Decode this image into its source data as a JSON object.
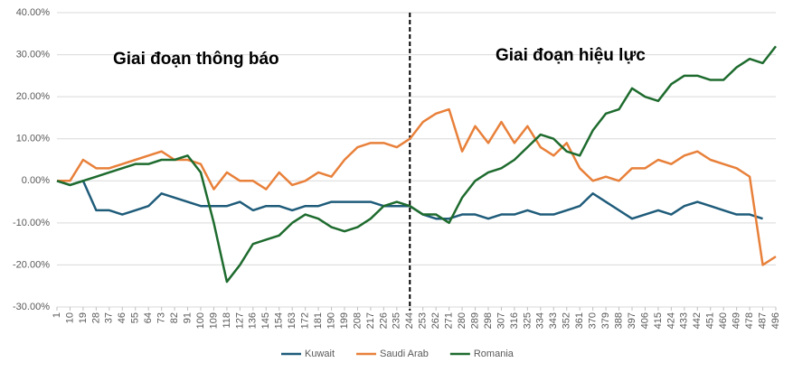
{
  "chart_data": {
    "type": "line",
    "annotations": [
      "Giai đoạn thông báo",
      "Giai đoạn hiệu lực"
    ],
    "divider_x": 244,
    "x": [
      1,
      10,
      19,
      28,
      37,
      46,
      55,
      64,
      73,
      82,
      91,
      100,
      109,
      118,
      127,
      136,
      145,
      154,
      163,
      172,
      181,
      190,
      199,
      208,
      217,
      226,
      235,
      244,
      253,
      262,
      271,
      280,
      289,
      298,
      307,
      316,
      325,
      334,
      343,
      352,
      361,
      370,
      379,
      388,
      397,
      406,
      415,
      424,
      433,
      442,
      451,
      460,
      469,
      478,
      487,
      496
    ],
    "xlim": [
      1,
      496
    ],
    "xticks": [
      1,
      10,
      19,
      28,
      37,
      46,
      55,
      64,
      73,
      82,
      91,
      100,
      109,
      118,
      127,
      136,
      145,
      154,
      163,
      172,
      181,
      190,
      199,
      208,
      217,
      226,
      235,
      244,
      253,
      262,
      271,
      280,
      289,
      298,
      307,
      316,
      325,
      334,
      343,
      352,
      361,
      370,
      379,
      388,
      397,
      406,
      415,
      424,
      433,
      442,
      451,
      460,
      469,
      478,
      487,
      496
    ],
    "ylim": [
      -30,
      40
    ],
    "yticks": [
      {
        "value": -30,
        "label": "-30.00%"
      },
      {
        "value": -20,
        "label": "-20.00%"
      },
      {
        "value": -10,
        "label": "-10.00%"
      },
      {
        "value": 0,
        "label": "0.00%"
      },
      {
        "value": 10,
        "label": "10.00%"
      },
      {
        "value": 20,
        "label": "20.00%"
      },
      {
        "value": 30,
        "label": "30.00%"
      },
      {
        "value": 40,
        "label": "40.00%"
      }
    ],
    "grid": true,
    "legend": "bottom",
    "series": [
      {
        "name": "Kuwait",
        "color": "#1f5c7a",
        "values": [
          0,
          -1,
          0,
          -7,
          -7,
          -8,
          -7,
          -6,
          -3,
          -4,
          -5,
          -6,
          -6,
          -6,
          -5,
          -7,
          -6,
          -6,
          -7,
          -6,
          -6,
          -5,
          -5,
          -5,
          -5,
          -6,
          -6,
          -6,
          -8,
          -9,
          -9,
          -8,
          -8,
          -9,
          -8,
          -8,
          -7,
          -8,
          -8,
          -7,
          -6,
          -3,
          -5,
          -7,
          -9,
          -8,
          -7,
          -8,
          -6,
          -5,
          -6,
          -7,
          -8,
          -8,
          -9,
          null
        ]
      },
      {
        "name": "Saudi Arab",
        "color": "#e8803a",
        "values": [
          0,
          0,
          5,
          3,
          3,
          4,
          5,
          6,
          7,
          5,
          5,
          4,
          -2,
          2,
          0,
          0,
          -2,
          2,
          -1,
          0,
          2,
          1,
          5,
          8,
          9,
          9,
          8,
          10,
          14,
          16,
          17,
          7,
          13,
          9,
          14,
          9,
          13,
          8,
          6,
          9,
          3,
          0,
          1,
          0,
          3,
          3,
          5,
          4,
          6,
          7,
          5,
          4,
          3,
          1,
          -20,
          -18
        ]
      },
      {
        "name": "Romania",
        "color": "#1e6b2e",
        "values": [
          0,
          -1,
          0,
          1,
          2,
          3,
          4,
          4,
          5,
          5,
          6,
          2,
          -10,
          -24,
          -20,
          -15,
          -14,
          -13,
          -10,
          -8,
          -9,
          -11,
          -12,
          -11,
          -9,
          -6,
          -5,
          -6,
          -8,
          -8,
          -10,
          -4,
          0,
          2,
          3,
          5,
          8,
          11,
          10,
          7,
          6,
          12,
          16,
          17,
          22,
          20,
          19,
          23,
          25,
          25,
          24,
          24,
          27,
          29,
          28,
          32
        ]
      }
    ]
  }
}
